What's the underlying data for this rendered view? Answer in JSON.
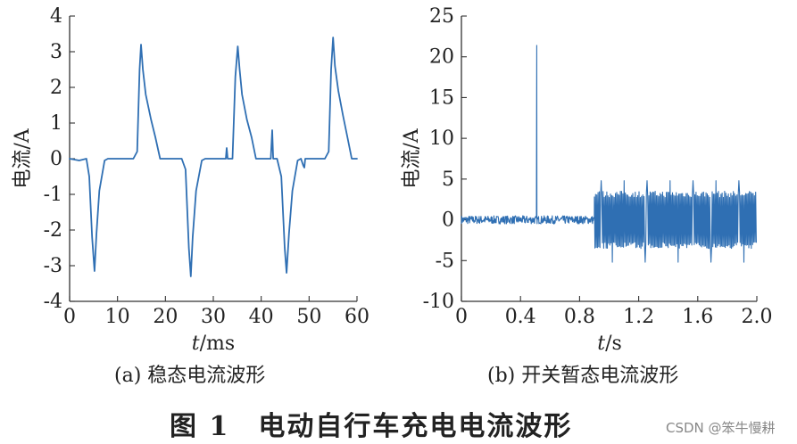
{
  "figure_caption": "图 1　电动自行车充电电流波形",
  "watermark": "CSDN @笨牛慢耕",
  "chart_data": [
    {
      "id": "a",
      "type": "line",
      "caption": "(a) 稳态电流波形",
      "xlabel_italic": "t",
      "xlabel_unit": "/ms",
      "ylabel": "电流/A",
      "xlim": [
        0,
        60
      ],
      "ylim": [
        -4,
        4
      ],
      "xticks": [
        0,
        10,
        20,
        30,
        40,
        50,
        60
      ],
      "yticks": [
        -4,
        -3,
        -2,
        -1,
        0,
        1,
        2,
        3,
        4
      ],
      "series": [
        {
          "color": "#2f6fb3",
          "x": [
            0,
            2,
            3.5,
            4.1,
            4.7,
            5.2,
            5.6,
            6.2,
            7.3,
            8.0,
            13.3,
            14.1,
            14.6,
            14.9,
            15.3,
            15.9,
            17.0,
            17.9,
            18.9,
            23.4,
            24.2,
            24.9,
            25.3,
            25.7,
            26.4,
            27.6,
            28.3,
            32.6,
            32.8,
            33.0,
            34.0,
            34.6,
            35.1,
            35.5,
            36.0,
            37.0,
            38.0,
            38.9,
            39.5,
            42.0,
            42.3,
            42.5,
            43.3,
            44.2,
            44.9,
            45.3,
            45.8,
            46.5,
            47.6,
            48.3,
            48.8,
            49.0,
            49.2,
            53.3,
            54.1,
            54.6,
            55.0,
            55.4,
            56.1,
            57.1,
            58.0,
            58.9,
            60
          ],
          "y": [
            0,
            -0.05,
            0,
            -0.5,
            -2.2,
            -3.15,
            -2.1,
            -0.9,
            -0.05,
            0,
            0,
            0.2,
            2.5,
            3.2,
            2.5,
            1.8,
            1.1,
            0.6,
            0,
            0,
            -0.3,
            -2.5,
            -3.3,
            -2.2,
            -0.9,
            -0.05,
            0,
            0,
            0.3,
            0,
            0,
            2.3,
            3.15,
            2.5,
            1.8,
            1.1,
            0.6,
            0,
            0,
            0,
            0.8,
            0,
            0,
            -0.5,
            -2.5,
            -3.2,
            -2.1,
            -0.9,
            -0.05,
            0,
            -0.2,
            -0.25,
            0,
            0,
            0.2,
            2.5,
            3.4,
            2.6,
            1.9,
            1.2,
            0.6,
            0,
            0
          ]
        }
      ]
    },
    {
      "id": "b",
      "type": "line",
      "caption": "(b) 开关暂态电流波形",
      "xlabel_italic": "t",
      "xlabel_unit": "/s",
      "ylabel": "电流/A",
      "xlim": [
        0,
        2.0
      ],
      "ylim": [
        -10,
        25
      ],
      "xticks": [
        0,
        0.4,
        0.8,
        1.2,
        1.6,
        2.0
      ],
      "xtick_labels": [
        "0",
        "0.4",
        "0.8",
        "1.2",
        "1.6",
        "2.0"
      ],
      "yticks": [
        -10,
        -5,
        0,
        5,
        10,
        15,
        20,
        25
      ],
      "series": [
        {
          "color": "#2f6fb3",
          "baseline_end": 0.9,
          "baseline_noise": 0.5,
          "spike_x": 0.51,
          "spike_y": 21.4,
          "oscillation_start": 0.9,
          "oscillation_end": 2.0,
          "oscillation_amplitude": 3.2,
          "occasional_peak": 4.8,
          "occasional_trough": -5.2
        }
      ]
    }
  ]
}
